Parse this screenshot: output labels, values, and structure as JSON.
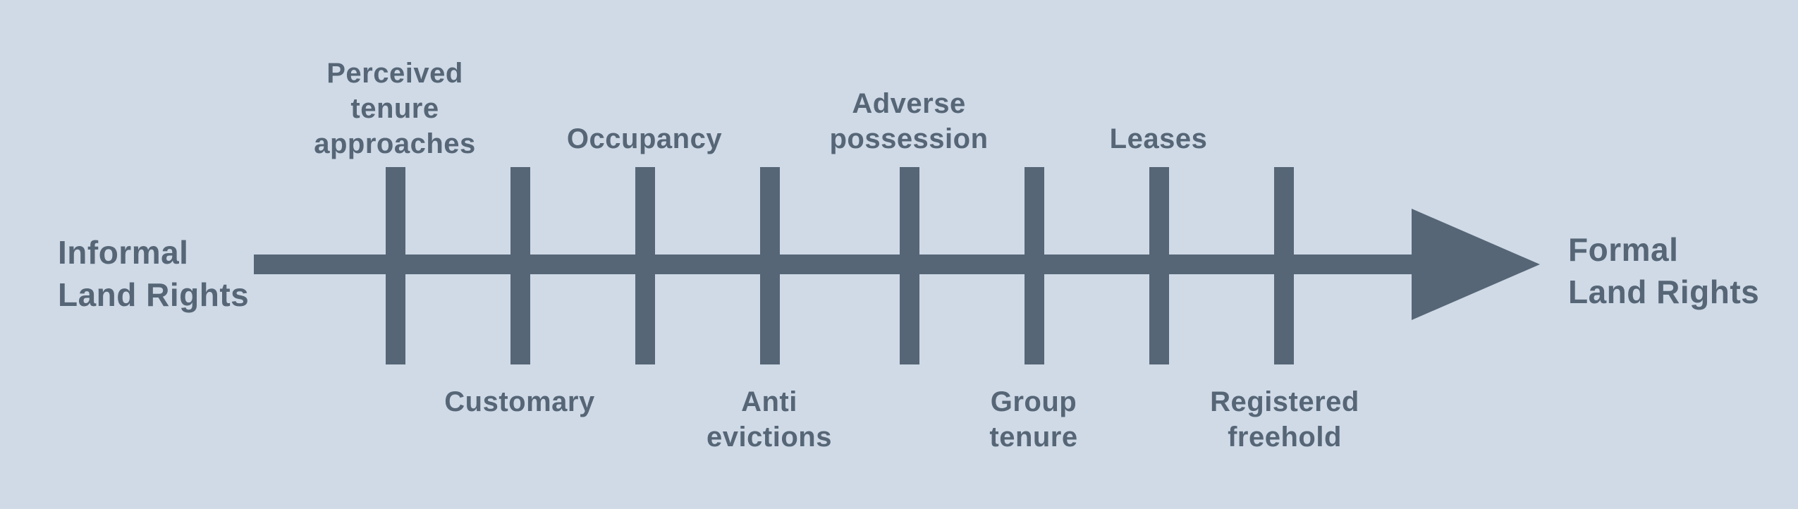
{
  "left_end": "Informal\nLand Rights",
  "right_end": "Formal\nLand Rights",
  "stages": [
    {
      "label": "Perceived\ntenure\napproaches",
      "side": "above"
    },
    {
      "label": "Customary",
      "side": "below"
    },
    {
      "label": "Occupancy",
      "side": "above"
    },
    {
      "label": "Anti\nevictions",
      "side": "below"
    },
    {
      "label": "Adverse\npossession",
      "side": "above"
    },
    {
      "label": "Group\ntenure",
      "side": "below"
    },
    {
      "label": "Leases",
      "side": "above"
    },
    {
      "label": "Registered\nfreehold",
      "side": "below"
    }
  ],
  "colors": {
    "background": "#d0dae7",
    "ink": "#566676"
  }
}
